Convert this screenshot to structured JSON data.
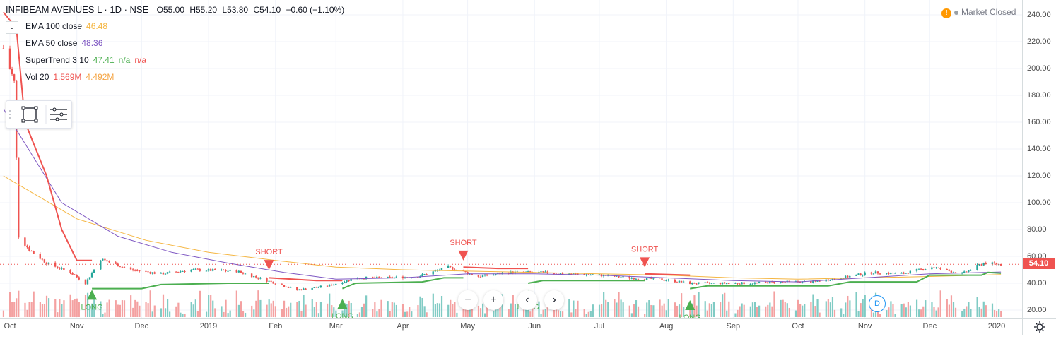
{
  "legend": {
    "symbol": "INFIBEAM AVENUES L · 1D · NSE",
    "open": "O55.00",
    "high": "H55.20",
    "low": "L53.80",
    "close": "C54.10",
    "change": "−0.60 (−1.10%)",
    "collapse_icon": "chevron-down-icon",
    "indicators": [
      {
        "name": "EMA 100 close",
        "values": [
          "46.48"
        ],
        "colors": [
          "#f5b642"
        ]
      },
      {
        "name": "EMA 50 close",
        "values": [
          "48.36"
        ],
        "colors": [
          "#7e57c2"
        ]
      },
      {
        "name": "SuperTrend 3 10",
        "values": [
          "47.41",
          "n/a",
          "n/a"
        ],
        "colors": [
          "#4caf50",
          "#4caf50",
          "#ef5350"
        ]
      },
      {
        "name": "Vol 20",
        "values": [
          "1.569M",
          "4.492M"
        ],
        "colors": [
          "#ef5350",
          "#f5a442"
        ]
      }
    ]
  },
  "market_status": {
    "icon": "warning-icon",
    "text": "Market Closed"
  },
  "last_price_label": "54.10",
  "colors": {
    "up": "#26a69a",
    "down": "#ef5350",
    "ema100": "#f5b642",
    "ema50": "#7e57c2",
    "supertrend_long": "#4caf50",
    "supertrend_short": "#ef5350",
    "vol_up": "#80cbc4",
    "vol_down": "#f4a1a1",
    "grid": "#f0f3fa"
  },
  "navigation": {
    "zoom_out": "−",
    "zoom_in": "+",
    "prev": "‹",
    "next": "›"
  },
  "badge_d": "D",
  "chart_data": {
    "type": "candlestick",
    "x_axis_labels": [
      "Oct",
      "Nov",
      "Dec",
      "2019",
      "Feb",
      "Mar",
      "Apr",
      "May",
      "Jun",
      "Jul",
      "Aug",
      "Sep",
      "Oct",
      "Nov",
      "Dec",
      "2020"
    ],
    "y_axis_ticks": [
      "20.00",
      "40.00",
      "60.00",
      "80.00",
      "100.00",
      "120.00",
      "140.00",
      "160.00",
      "180.00",
      "200.00",
      "220.00",
      "240.00"
    ],
    "ylim": [
      15,
      245
    ],
    "last_price": 54.1,
    "annotations": [
      {
        "text": "LONG",
        "date": "2018-11-08",
        "type": "long"
      },
      {
        "text": "SHORT",
        "date": "2019-01-29",
        "type": "short"
      },
      {
        "text": "LONG",
        "date": "2019-03-04",
        "type": "long"
      },
      {
        "text": "SHORT",
        "date": "2019-04-29",
        "type": "short"
      },
      {
        "text": "LONG",
        "date": "2019-05-29",
        "type": "long"
      },
      {
        "text": "SHORT",
        "date": "2019-07-22",
        "type": "short"
      },
      {
        "text": "LONG",
        "date": "2019-08-12",
        "type": "long"
      }
    ],
    "close_series": [
      {
        "date": "2018-09-28",
        "value": 215
      },
      {
        "date": "2018-10-03",
        "value": 190
      },
      {
        "date": "2018-10-05",
        "value": 75
      },
      {
        "date": "2018-10-10",
        "value": 65
      },
      {
        "date": "2018-10-18",
        "value": 55
      },
      {
        "date": "2018-10-29",
        "value": 48
      },
      {
        "date": "2018-11-05",
        "value": 40
      },
      {
        "date": "2018-11-12",
        "value": 58
      },
      {
        "date": "2018-11-26",
        "value": 50
      },
      {
        "date": "2018-12-10",
        "value": 47
      },
      {
        "date": "2018-12-24",
        "value": 50
      },
      {
        "date": "2019-01-14",
        "value": 49
      },
      {
        "date": "2019-01-28",
        "value": 42
      },
      {
        "date": "2019-02-11",
        "value": 35
      },
      {
        "date": "2019-02-25",
        "value": 38
      },
      {
        "date": "2019-03-11",
        "value": 44
      },
      {
        "date": "2019-03-25",
        "value": 44
      },
      {
        "date": "2019-04-08",
        "value": 45
      },
      {
        "date": "2019-04-22",
        "value": 52
      },
      {
        "date": "2019-05-06",
        "value": 45
      },
      {
        "date": "2019-05-20",
        "value": 48
      },
      {
        "date": "2019-06-03",
        "value": 48
      },
      {
        "date": "2019-06-17",
        "value": 47
      },
      {
        "date": "2019-07-01",
        "value": 46
      },
      {
        "date": "2019-07-15",
        "value": 44
      },
      {
        "date": "2019-07-29",
        "value": 43
      },
      {
        "date": "2019-08-12",
        "value": 40
      },
      {
        "date": "2019-08-26",
        "value": 40
      },
      {
        "date": "2019-09-09",
        "value": 40
      },
      {
        "date": "2019-09-23",
        "value": 41
      },
      {
        "date": "2019-10-07",
        "value": 41
      },
      {
        "date": "2019-10-21",
        "value": 44
      },
      {
        "date": "2019-11-04",
        "value": 48
      },
      {
        "date": "2019-11-18",
        "value": 47
      },
      {
        "date": "2019-12-02",
        "value": 52
      },
      {
        "date": "2019-12-16",
        "value": 47
      },
      {
        "date": "2019-12-26",
        "value": 55
      },
      {
        "date": "2020-01-03",
        "value": 54
      }
    ],
    "ema100": [
      {
        "date": "2018-09-28",
        "value": 120
      },
      {
        "date": "2018-11-01",
        "value": 88
      },
      {
        "date": "2018-12-03",
        "value": 72
      },
      {
        "date": "2019-01-01",
        "value": 63
      },
      {
        "date": "2019-02-01",
        "value": 57
      },
      {
        "date": "2019-03-01",
        "value": 52
      },
      {
        "date": "2019-04-01",
        "value": 50
      },
      {
        "date": "2019-05-01",
        "value": 49
      },
      {
        "date": "2019-06-01",
        "value": 48
      },
      {
        "date": "2019-07-01",
        "value": 47
      },
      {
        "date": "2019-08-01",
        "value": 46
      },
      {
        "date": "2019-09-01",
        "value": 44
      },
      {
        "date": "2019-10-01",
        "value": 43
      },
      {
        "date": "2019-11-01",
        "value": 44
      },
      {
        "date": "2019-12-01",
        "value": 45
      },
      {
        "date": "2020-01-03",
        "value": 46.48
      }
    ],
    "ema50": [
      {
        "date": "2018-09-28",
        "value": 170
      },
      {
        "date": "2018-10-25",
        "value": 100
      },
      {
        "date": "2018-11-20",
        "value": 75
      },
      {
        "date": "2018-12-15",
        "value": 63
      },
      {
        "date": "2019-01-10",
        "value": 55
      },
      {
        "date": "2019-02-05",
        "value": 48
      },
      {
        "date": "2019-03-01",
        "value": 43
      },
      {
        "date": "2019-04-01",
        "value": 44
      },
      {
        "date": "2019-05-01",
        "value": 47
      },
      {
        "date": "2019-06-01",
        "value": 47
      },
      {
        "date": "2019-07-01",
        "value": 46
      },
      {
        "date": "2019-08-01",
        "value": 44
      },
      {
        "date": "2019-09-01",
        "value": 42
      },
      {
        "date": "2019-10-01",
        "value": 41
      },
      {
        "date": "2019-11-01",
        "value": 44
      },
      {
        "date": "2019-12-01",
        "value": 47
      },
      {
        "date": "2020-01-03",
        "value": 48.36
      }
    ],
    "supertrend_short": [
      {
        "date": "2018-09-28",
        "value": 242
      },
      {
        "date": "2018-10-04",
        "value": 230
      },
      {
        "date": "2018-10-08",
        "value": 160
      },
      {
        "date": "2018-10-18",
        "value": 120
      },
      {
        "date": "2018-10-25",
        "value": 80
      },
      {
        "date": "2018-11-01",
        "value": 57
      },
      {
        "date": "2018-11-08",
        "value": 57
      }
    ],
    "supertrend_long_1": [
      {
        "date": "2018-11-08",
        "value": 36
      },
      {
        "date": "2018-12-01",
        "value": 36
      },
      {
        "date": "2018-12-10",
        "value": 39
      },
      {
        "date": "2019-01-10",
        "value": 40
      },
      {
        "date": "2019-01-29",
        "value": 40
      }
    ],
    "supertrend_short_2": [
      {
        "date": "2019-01-29",
        "value": 44
      },
      {
        "date": "2019-02-20",
        "value": 42
      },
      {
        "date": "2019-03-04",
        "value": 42
      }
    ],
    "supertrend_long_2": [
      {
        "date": "2019-03-04",
        "value": 36
      },
      {
        "date": "2019-03-10",
        "value": 40
      },
      {
        "date": "2019-04-10",
        "value": 41
      },
      {
        "date": "2019-04-20",
        "value": 44
      },
      {
        "date": "2019-04-29",
        "value": 44
      }
    ],
    "supertrend_short_3": [
      {
        "date": "2019-04-29",
        "value": 52
      },
      {
        "date": "2019-05-15",
        "value": 51
      },
      {
        "date": "2019-05-29",
        "value": 51
      }
    ],
    "supertrend_long_3": [
      {
        "date": "2019-05-29",
        "value": 40
      },
      {
        "date": "2019-06-05",
        "value": 42
      },
      {
        "date": "2019-07-22",
        "value": 42
      }
    ],
    "supertrend_short_4": [
      {
        "date": "2019-07-22",
        "value": 47
      },
      {
        "date": "2019-08-12",
        "value": 46
      }
    ],
    "supertrend_long_4": [
      {
        "date": "2019-08-12",
        "value": 36
      },
      {
        "date": "2019-08-20",
        "value": 38
      },
      {
        "date": "2019-10-15",
        "value": 38
      },
      {
        "date": "2019-10-25",
        "value": 41
      },
      {
        "date": "2019-11-25",
        "value": 41
      },
      {
        "date": "2019-12-01",
        "value": 46
      },
      {
        "date": "2019-12-25",
        "value": 46
      },
      {
        "date": "2019-12-28",
        "value": 48
      },
      {
        "date": "2020-01-03",
        "value": 47.41
      }
    ]
  }
}
